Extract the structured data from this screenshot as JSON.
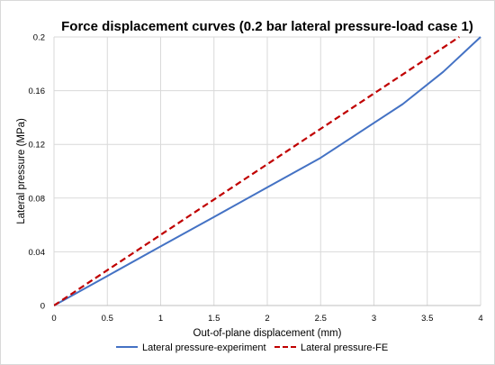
{
  "chart_data": {
    "type": "line",
    "title": "Force displacement curves (0.2 bar lateral pressure-load case 1)",
    "xlabel": "Out-of-plane displacement (mm)",
    "ylabel": "Lateral pressure (MPa)",
    "xlim": [
      0,
      4
    ],
    "ylim": [
      0,
      0.2
    ],
    "xticks": [
      0,
      0.5,
      1,
      1.5,
      2,
      2.5,
      3,
      3.5,
      4
    ],
    "xtick_labels": [
      "0",
      "0.5",
      "1",
      "1.5",
      "2",
      "2.5",
      "3",
      "3.5",
      "4"
    ],
    "yticks": [
      0,
      0.04,
      0.08,
      0.12,
      0.16,
      0.2
    ],
    "ytick_labels": [
      "0",
      "0.04",
      "0.08",
      "0.12",
      "0.16",
      "0.2"
    ],
    "grid": "vertical-and-horizontal",
    "legend_position": "bottom",
    "series": [
      {
        "name": "Lateral pressure-experiment",
        "color": "#4472C4",
        "style": "solid",
        "x": [
          0,
          0.5,
          1,
          1.5,
          2,
          2.5,
          3.27,
          3.65,
          4.0
        ],
        "y": [
          0,
          0.022,
          0.044,
          0.066,
          0.088,
          0.11,
          0.15,
          0.174,
          0.2
        ]
      },
      {
        "name": "Lateral pressure-FE",
        "color": "#C00000",
        "style": "dashed",
        "x": [
          0,
          3.8
        ],
        "y": [
          0,
          0.2
        ]
      }
    ]
  }
}
